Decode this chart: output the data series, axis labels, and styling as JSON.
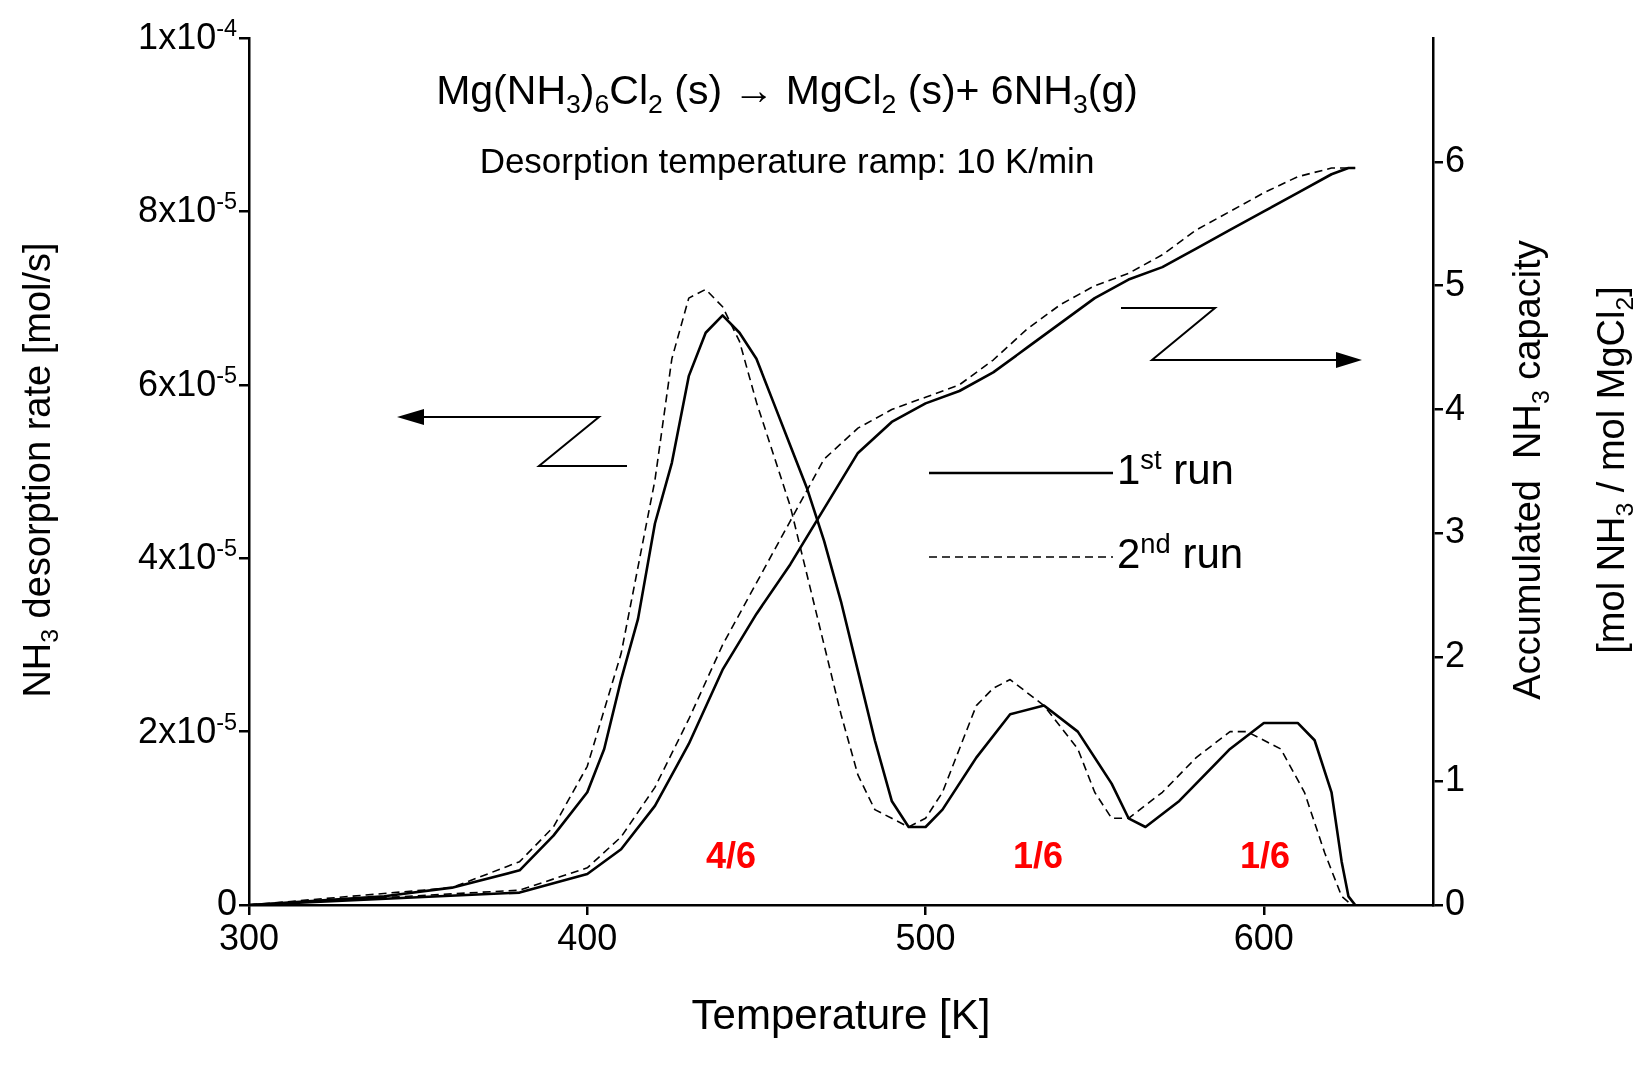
{
  "chart_data": {
    "type": "line",
    "title": "Mg(NH$_{3}$)$_{6}$Cl$_{2}$ (s)  → MgCl$_{2}$ (s)+ 6NH$_{3}$(g)",
    "subtitle": "Desorption temperature ramp: 10 K/min",
    "xlabel": "Temperature [K]",
    "ylabel": "NH$_{3}$ desorption rate [mol/s]",
    "y2label": "Accumulated  NH$_{3}$ capacity\n[mol NH$_{3}$ / mol MgCl$_{2}$]",
    "xlim": [
      300,
      650
    ],
    "xticks": [
      300,
      400,
      500,
      600
    ],
    "ylim": [
      0,
      0.0001
    ],
    "yticks": [
      0,
      {
        "value": 2e-05,
        "label": "2x10$^{-5}$"
      },
      {
        "value": 4e-05,
        "label": "4x10$^{-5}$"
      },
      {
        "value": 6e-05,
        "label": "6x10$^{-5}$"
      },
      {
        "value": 8e-05,
        "label": "8x10$^{-5}$"
      },
      {
        "value": 0.0001,
        "label": "1x10$^{-4}$"
      }
    ],
    "y2lim": [
      0,
      7
    ],
    "y2ticks": [
      0,
      1,
      2,
      3,
      4,
      5,
      6
    ],
    "grid": false,
    "legend": "right",
    "marker": "none",
    "series": [
      {
        "name": "1$^{st}$ run",
        "color": "#000000",
        "line_style": "solid",
        "x": [
          300,
          340,
          360,
          380,
          390,
          400,
          405,
          410,
          415,
          420,
          425,
          430,
          435,
          440,
          445,
          450,
          455,
          460,
          465,
          470,
          475,
          480,
          485,
          490,
          495,
          500,
          505,
          515,
          525,
          535,
          545,
          555,
          560,
          565,
          575,
          590,
          600,
          610,
          615,
          620,
          623,
          625,
          627
        ],
        "values": [
          0,
          1e-06,
          2e-06,
          4e-06,
          8e-06,
          1.3e-05,
          1.8e-05,
          2.6e-05,
          3.3e-05,
          4.4e-05,
          5.1e-05,
          6.1e-05,
          6.6e-05,
          6.8e-05,
          6.6e-05,
          6.3e-05,
          5.8e-05,
          5.3e-05,
          4.8e-05,
          4.2e-05,
          3.5e-05,
          2.7e-05,
          1.9e-05,
          1.2e-05,
          9e-06,
          9e-06,
          1.1e-05,
          1.7e-05,
          2.2e-05,
          2.3e-05,
          2e-05,
          1.4e-05,
          1e-05,
          9e-06,
          1.2e-05,
          1.8e-05,
          2.1e-05,
          2.1e-05,
          1.9e-05,
          1.3e-05,
          5e-06,
          1e-06,
          0
        ]
      },
      {
        "name": "2$^{nd}$ run",
        "color": "#000000",
        "line_style": "dashed",
        "x": [
          300,
          360,
          380,
          390,
          400,
          410,
          420,
          425,
          430,
          435,
          440,
          445,
          450,
          455,
          460,
          465,
          470,
          475,
          480,
          485,
          490,
          495,
          500,
          505,
          510,
          515,
          520,
          525,
          535,
          545,
          550,
          555,
          560,
          570,
          580,
          590,
          595,
          605,
          612,
          618,
          623,
          626
        ],
        "values": [
          0,
          2e-06,
          5e-06,
          9e-06,
          1.6e-05,
          2.9e-05,
          4.9e-05,
          6.3e-05,
          7e-05,
          7.1e-05,
          6.9e-05,
          6.5e-05,
          5.8e-05,
          5.2e-05,
          4.6e-05,
          3.8e-05,
          3e-05,
          2.2e-05,
          1.5e-05,
          1.1e-05,
          1e-05,
          9e-06,
          1e-05,
          1.3e-05,
          1.8e-05,
          2.3e-05,
          2.5e-05,
          2.6e-05,
          2.3e-05,
          1.8e-05,
          1.3e-05,
          1e-05,
          1e-05,
          1.3e-05,
          1.7e-05,
          2e-05,
          2e-05,
          1.8e-05,
          1.3e-05,
          6e-06,
          1e-06,
          0
        ]
      },
      {
        "axis": "y2",
        "color": "#000000",
        "line_style": "solid",
        "x": [
          300,
          380,
          400,
          410,
          420,
          430,
          440,
          450,
          460,
          470,
          480,
          490,
          500,
          510,
          520,
          530,
          540,
          550,
          560,
          570,
          580,
          590,
          600,
          610,
          620,
          625,
          627
        ],
        "values": [
          0,
          0.1,
          0.25,
          0.45,
          0.8,
          1.3,
          1.9,
          2.35,
          2.75,
          3.2,
          3.65,
          3.9,
          4.05,
          4.15,
          4.3,
          4.5,
          4.7,
          4.9,
          5.05,
          5.15,
          5.3,
          5.45,
          5.6,
          5.75,
          5.9,
          5.95,
          5.95
        ]
      },
      {
        "axis": "y2",
        "color": "#000000",
        "line_style": "dashed",
        "x": [
          300,
          380,
          400,
          410,
          420,
          430,
          440,
          450,
          460,
          470,
          480,
          490,
          500,
          510,
          520,
          530,
          540,
          550,
          560,
          570,
          580,
          590,
          600,
          610,
          620,
          627
        ],
        "values": [
          0,
          0.12,
          0.3,
          0.55,
          0.95,
          1.5,
          2.1,
          2.6,
          3.1,
          3.6,
          3.85,
          4,
          4.1,
          4.2,
          4.4,
          4.65,
          4.85,
          5,
          5.1,
          5.25,
          5.45,
          5.6,
          5.75,
          5.88,
          5.95,
          5.95
        ]
      }
    ],
    "annotations": [
      "4/6",
      "1/6",
      "1/6"
    ]
  }
}
